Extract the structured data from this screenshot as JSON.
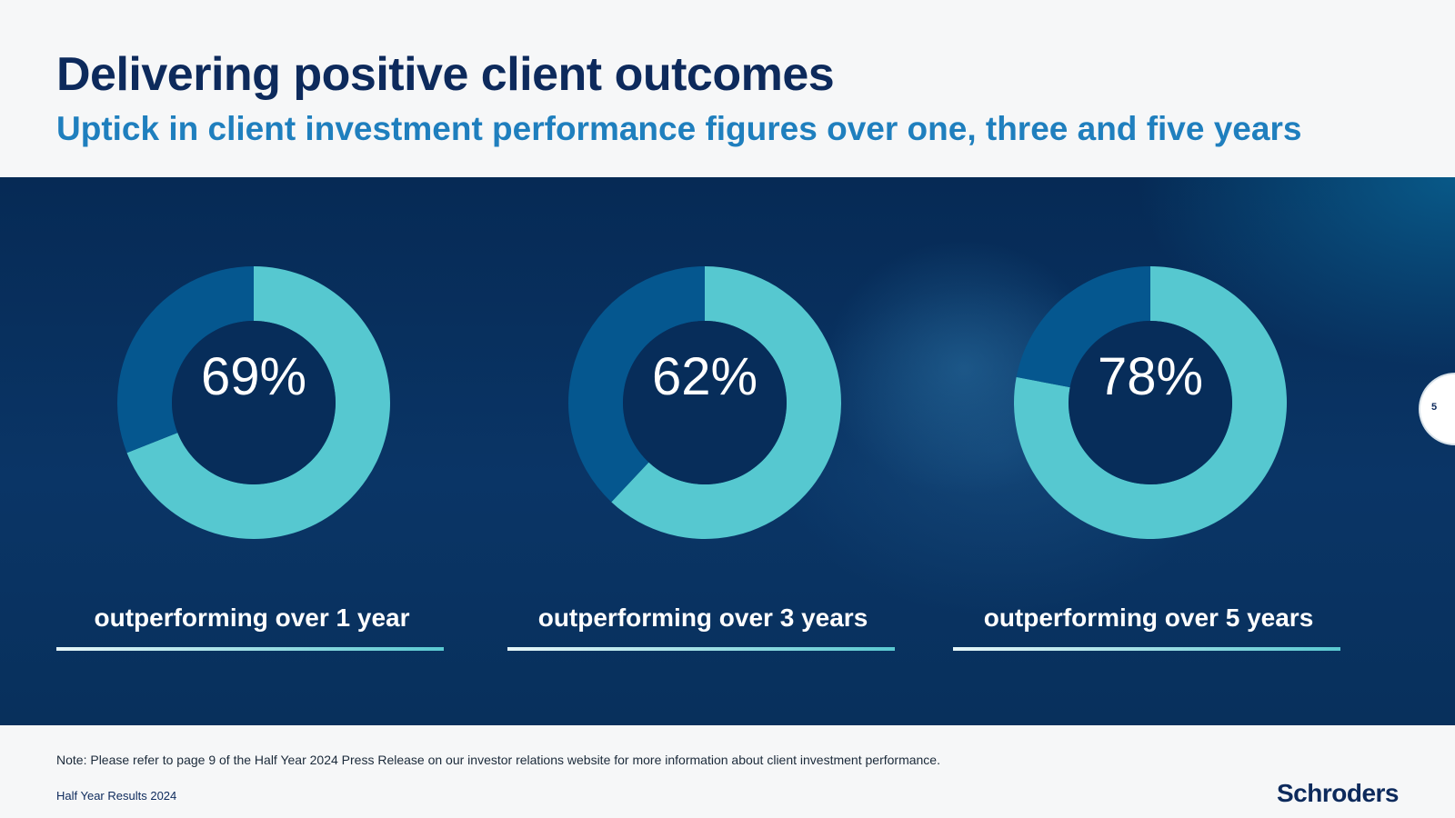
{
  "header": {
    "title": "Delivering positive client outcomes",
    "subtitle": "Uptick in client investment performance figures over one, three and five years"
  },
  "colors": {
    "outperforming": "#56c8d0",
    "remainder": "#05578f",
    "title": "#0d2a5c",
    "subtitle": "#1f7fbe"
  },
  "chart_data": [
    {
      "type": "pie",
      "categories": [
        "outperforming",
        "other"
      ],
      "values": [
        69,
        31
      ],
      "center_label": "69%",
      "label": "outperforming over 1 year"
    },
    {
      "type": "pie",
      "categories": [
        "outperforming",
        "other"
      ],
      "values": [
        62,
        38
      ],
      "center_label": "62%",
      "label": "outperforming over 3 years"
    },
    {
      "type": "pie",
      "categories": [
        "outperforming",
        "other"
      ],
      "values": [
        78,
        22
      ],
      "center_label": "78%",
      "label": "outperforming over 5 years"
    }
  ],
  "page_number": "5",
  "footer": {
    "note": "Note: Please refer to page 9 of the Half Year 2024 Press Release on our investor relations website for more information about client investment performance.",
    "left": "Half Year Results 2024",
    "logo": "Schroders"
  }
}
